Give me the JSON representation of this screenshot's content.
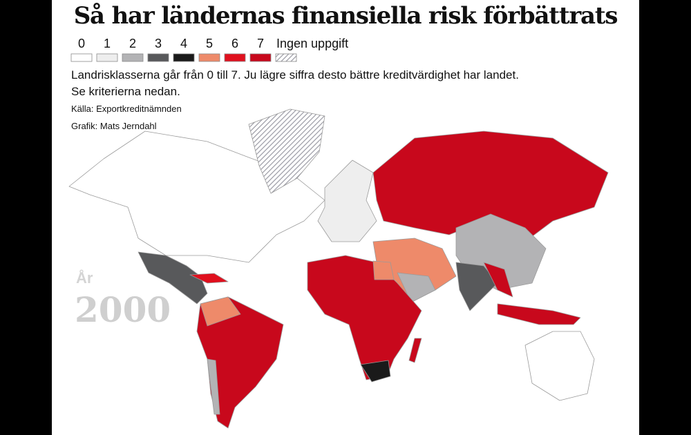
{
  "header": {
    "title": "Så har ländernas finansiella risk förbättrats",
    "description": [
      "Landrisklasserna går från 0 till 7. Ju lägre siffra desto bättre kreditvärdighet har landet.",
      "Se kriterierna nedan."
    ],
    "source": "Källa: Exportkreditnämnden",
    "credit": "Grafik: Mats Jerndahl"
  },
  "legend": [
    {
      "label": "0",
      "color": "#ffffff"
    },
    {
      "label": "1",
      "color": "#eeeeee"
    },
    {
      "label": "2",
      "color": "#b3b3b5"
    },
    {
      "label": "3",
      "color": "#58595b"
    },
    {
      "label": "4",
      "color": "#1a1a1a"
    },
    {
      "label": "5",
      "color": "#ee8a6a"
    },
    {
      "label": "6",
      "color": "#e0101e"
    },
    {
      "label": "7",
      "color": "#c8081c"
    },
    {
      "label": "Ingen uppgift",
      "color": "#9a9aa4",
      "pattern": "hatch"
    }
  ],
  "year": {
    "label": "År",
    "value": "2000"
  }
}
